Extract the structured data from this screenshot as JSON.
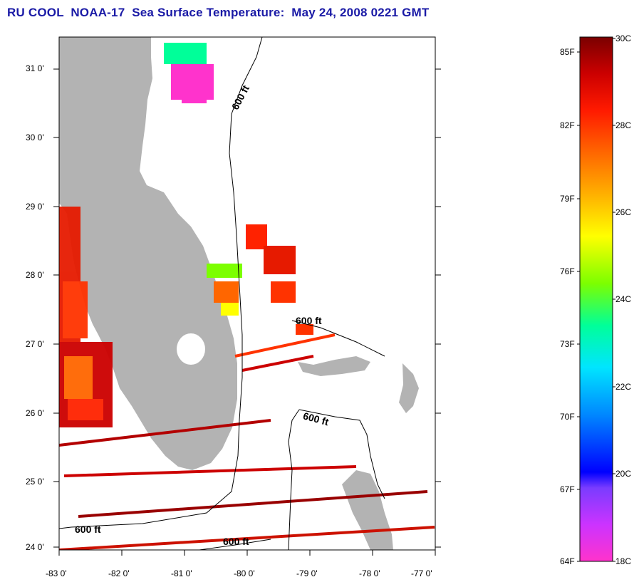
{
  "title": "RU COOL  NOAA-17  Sea Surface Temperature:  May 24, 2008 0221 GMT",
  "axes": {
    "lat_labels": [
      "31 0'",
      "30 0'",
      "29 0'",
      "28 0'",
      "27 0'",
      "26 0'",
      "25 0'",
      "24 0'"
    ],
    "lon_labels": [
      "-83 0'",
      "-82 0'",
      "-81 0'",
      "-80 0'",
      "-79 0'",
      "-78 0'",
      "-77 0'"
    ]
  },
  "contours": {
    "label": "600 ft",
    "label_count": 5
  },
  "colorbar": {
    "fahrenheit_labels": [
      "85F",
      "82F",
      "79F",
      "76F",
      "73F",
      "70F",
      "67F",
      "64F"
    ],
    "celsius_labels": [
      "30C",
      "28C",
      "26C",
      "24C",
      "22C",
      "20C",
      "18C"
    ],
    "colors": [
      "#ff33cc",
      "#cc33ff",
      "#7a3cff",
      "#0000ff",
      "#0088ff",
      "#00e5ff",
      "#00ff99",
      "#7cff00",
      "#ffff00",
      "#ffb000",
      "#ff6600",
      "#ff1a00",
      "#cc0000",
      "#7a0000"
    ]
  },
  "legend_colors": {
    "land": "#b3b3b3",
    "ocean": "#ffffff",
    "title": "#1a1aa6"
  }
}
